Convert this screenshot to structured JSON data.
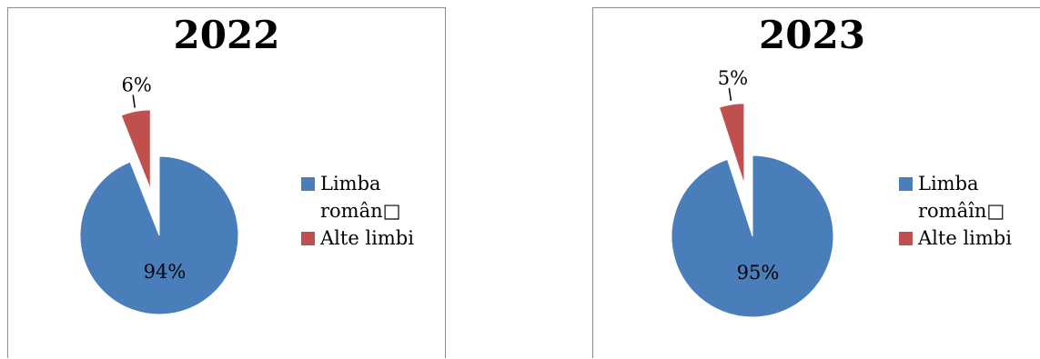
{
  "chart_data": [
    {
      "type": "pie",
      "title": "2022",
      "categories": [
        "Limba român□",
        "Alte limbi"
      ],
      "values": [
        94,
        6
      ],
      "value_labels": [
        "94%",
        "6%"
      ],
      "colors": [
        "#4a7ebb",
        "#c0504d"
      ],
      "exploded": [
        false,
        true
      ],
      "legend_position": "right"
    },
    {
      "type": "pie",
      "title": "2023",
      "categories": [
        "Limba româîn□",
        "Alte limbi"
      ],
      "values": [
        95,
        5
      ],
      "value_labels": [
        "95%",
        "5%"
      ],
      "colors": [
        "#4a7ebb",
        "#c0504d"
      ],
      "exploded": [
        false,
        true
      ],
      "legend_position": "right"
    }
  ]
}
